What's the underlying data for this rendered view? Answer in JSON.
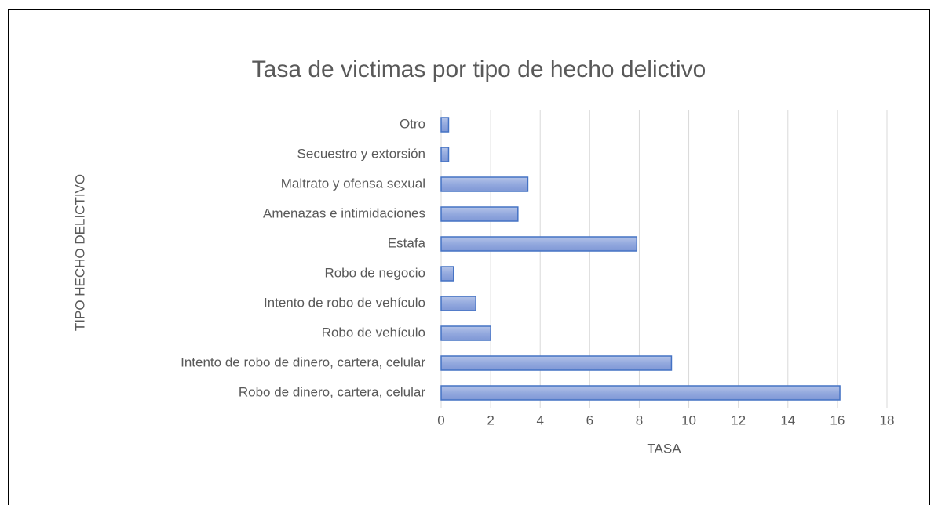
{
  "chart_data": {
    "type": "bar",
    "orientation": "horizontal",
    "title": "Tasa de victimas por tipo de hecho delictivo",
    "x_label": "TASA",
    "y_label": "TIPO HECHO DELICTIVO",
    "categories": [
      "Otro",
      "Secuestro y extorsión",
      "Maltrato y ofensa sexual",
      "Amenazas e intimidaciones",
      "Estafa",
      "Robo de negocio",
      "Intento de robo de vehículo",
      "Robo de vehículo",
      "Intento de robo de dinero, cartera, celular",
      "Robo de dinero, cartera, celular"
    ],
    "values": [
      0.3,
      0.3,
      3.5,
      3.1,
      7.9,
      0.5,
      1.4,
      2.0,
      9.3,
      16.1
    ],
    "color": "#8ea5dc",
    "xlim": [
      0,
      18
    ],
    "xticks": [
      0,
      2,
      4,
      6,
      8,
      10,
      12,
      14,
      16,
      18
    ],
    "grid": true
  }
}
